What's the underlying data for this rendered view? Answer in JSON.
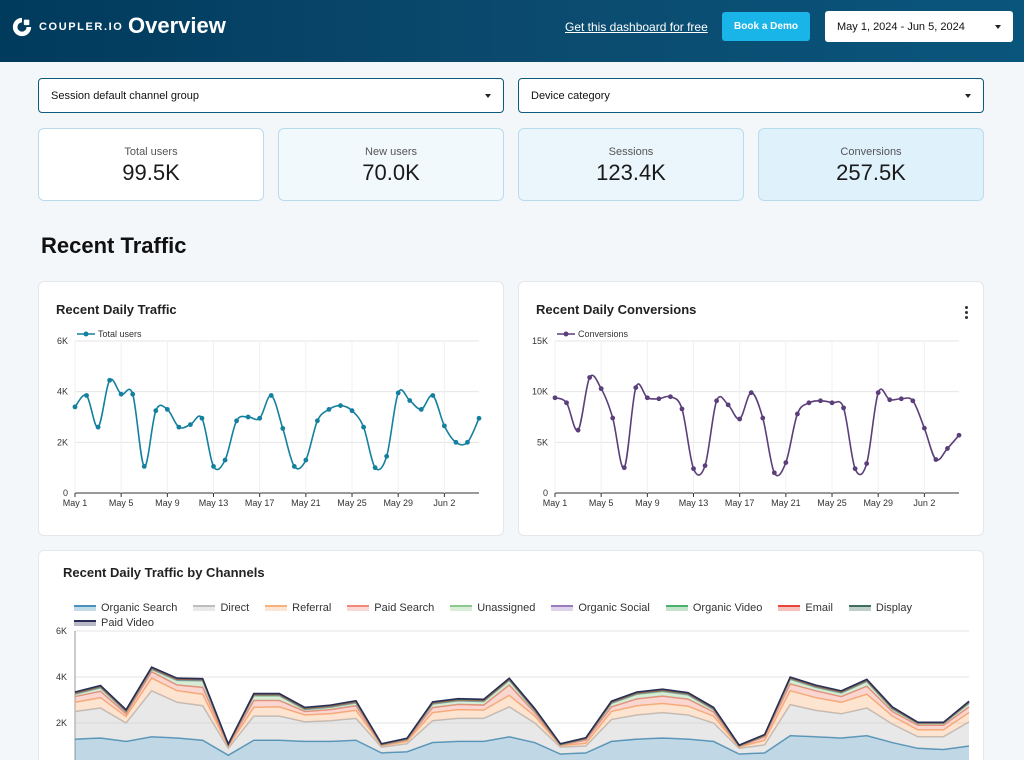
{
  "header": {
    "logo_text": "COUPLER.IO",
    "title": "Overview",
    "promo_link": "Get this dashboard for free",
    "demo_button": "Book a Demo",
    "date_range": "May 1, 2024 - Jun 5, 2024"
  },
  "filters": {
    "channel": "Session default channel group",
    "device": "Device category"
  },
  "kpis": [
    {
      "label": "Total users",
      "value": "99.5K"
    },
    {
      "label": "New users",
      "value": "70.0K"
    },
    {
      "label": "Sessions",
      "value": "123.4K"
    },
    {
      "label": "Conversions",
      "value": "257.5K"
    }
  ],
  "section_title": "Recent Traffic",
  "colors": {
    "traffic_line": "#14809f",
    "conversions_line": "#5b3f7a",
    "header_bg": "#003a5c",
    "accent": "#19b4e8"
  },
  "chart_data": [
    {
      "type": "line",
      "title": "Recent Daily Traffic",
      "x_ticks": [
        "May 1",
        "May 5",
        "May 9",
        "May 13",
        "May 17",
        "May 21",
        "May 25",
        "May 29",
        "Jun 2"
      ],
      "y_ticks": [
        "0",
        "2K",
        "4K",
        "6K"
      ],
      "ylim": [
        0,
        6000
      ],
      "legend_position": "top-left",
      "grid": true,
      "series": [
        {
          "name": "Total users",
          "color": "#14809f",
          "values": [
            3400,
            3850,
            2600,
            4450,
            3900,
            3900,
            1050,
            3250,
            3300,
            2600,
            2700,
            2950,
            1050,
            1300,
            2850,
            3000,
            2950,
            3850,
            2550,
            1050,
            1300,
            2850,
            3300,
            3450,
            3250,
            2600,
            1000,
            1450,
            3950,
            3650,
            3300,
            3850,
            2650,
            2000,
            2000,
            2950
          ]
        }
      ]
    },
    {
      "type": "line",
      "title": "Recent Daily Conversions",
      "x_ticks": [
        "May 1",
        "May 5",
        "May 9",
        "May 13",
        "May 17",
        "May 21",
        "May 25",
        "May 29",
        "Jun 2"
      ],
      "y_ticks": [
        "0",
        "5K",
        "10K",
        "15K"
      ],
      "ylim": [
        0,
        15000
      ],
      "legend_position": "top-left",
      "grid": true,
      "series": [
        {
          "name": "Conversions",
          "color": "#5b3f7a",
          "values": [
            9400,
            8900,
            6200,
            11400,
            10300,
            7400,
            2500,
            10400,
            9400,
            9300,
            9500,
            8300,
            2400,
            2700,
            9100,
            8700,
            7300,
            9900,
            7400,
            2000,
            3000,
            7800,
            8900,
            9100,
            8900,
            8400,
            2400,
            2900,
            9900,
            9200,
            9300,
            9100,
            6400,
            3300,
            4400,
            5700
          ]
        }
      ]
    },
    {
      "type": "area",
      "title": "Recent Daily Traffic by Channels",
      "stacked": true,
      "y_ticks": [
        "6K",
        "4K",
        "2K"
      ],
      "ylim": [
        0,
        6000
      ],
      "legend_position": "top",
      "series": [
        {
          "name": "Organic Search",
          "color": "#4a90b8",
          "values": [
            1300,
            1350,
            1200,
            1400,
            1350,
            1250,
            600,
            1250,
            1250,
            1200,
            1200,
            1250,
            700,
            750,
            1150,
            1200,
            1200,
            1400,
            1150,
            650,
            700,
            1200,
            1300,
            1350,
            1300,
            1200,
            650,
            700,
            1450,
            1400,
            1350,
            1450,
            1150,
            900,
            850,
            1000
          ]
        },
        {
          "name": "Direct",
          "color": "#bdbdbd",
          "values": [
            1200,
            1300,
            800,
            2000,
            1550,
            1500,
            300,
            1050,
            1050,
            850,
            900,
            950,
            250,
            350,
            950,
            1000,
            1000,
            1300,
            850,
            300,
            300,
            950,
            1050,
            1100,
            1050,
            800,
            250,
            350,
            1350,
            1150,
            1050,
            1200,
            800,
            500,
            550,
            1050
          ]
        },
        {
          "name": "Referral",
          "color": "#f7b27a",
          "values": [
            400,
            450,
            280,
            550,
            500,
            500,
            80,
            380,
            400,
            300,
            300,
            350,
            60,
            100,
            350,
            380,
            360,
            500,
            300,
            60,
            120,
            350,
            400,
            400,
            380,
            300,
            50,
            200,
            600,
            550,
            500,
            600,
            350,
            300,
            300,
            400
          ]
        },
        {
          "name": "Paid Search",
          "color": "#f0897a",
          "values": [
            250,
            280,
            120,
            280,
            250,
            300,
            40,
            300,
            280,
            150,
            180,
            200,
            30,
            60,
            220,
            230,
            220,
            450,
            150,
            30,
            130,
            200,
            300,
            320,
            310,
            180,
            30,
            150,
            300,
            300,
            250,
            350,
            200,
            200,
            200,
            250
          ]
        },
        {
          "name": "Unassigned",
          "color": "#8cc98c",
          "values": [
            100,
            150,
            80,
            100,
            200,
            280,
            20,
            200,
            200,
            80,
            100,
            120,
            10,
            30,
            150,
            150,
            150,
            200,
            80,
            10,
            60,
            150,
            200,
            200,
            180,
            100,
            10,
            50,
            200,
            150,
            150,
            200,
            100,
            80,
            80,
            150
          ]
        },
        {
          "name": "Organic Social",
          "color": "#9c7cc0",
          "values": [
            20,
            20,
            20,
            20,
            20,
            20,
            10,
            20,
            20,
            20,
            20,
            20,
            10,
            10,
            20,
            20,
            20,
            20,
            20,
            10,
            10,
            20,
            20,
            20,
            20,
            20,
            10,
            10,
            20,
            20,
            20,
            20,
            20,
            10,
            10,
            20
          ]
        },
        {
          "name": "Organic Video",
          "color": "#4caf6a",
          "values": [
            20,
            20,
            20,
            20,
            20,
            20,
            10,
            20,
            20,
            20,
            20,
            20,
            10,
            10,
            20,
            20,
            20,
            20,
            20,
            10,
            10,
            20,
            20,
            20,
            20,
            20,
            10,
            10,
            20,
            20,
            20,
            20,
            20,
            10,
            10,
            20
          ]
        },
        {
          "name": "Email",
          "color": "#e8453c",
          "values": [
            20,
            20,
            20,
            20,
            20,
            20,
            10,
            20,
            20,
            20,
            20,
            20,
            10,
            10,
            20,
            20,
            20,
            20,
            20,
            10,
            10,
            20,
            20,
            20,
            20,
            20,
            10,
            10,
            20,
            20,
            20,
            20,
            20,
            10,
            10,
            20
          ]
        },
        {
          "name": "Display",
          "color": "#3f6e5f",
          "values": [
            20,
            20,
            20,
            20,
            20,
            20,
            10,
            20,
            20,
            20,
            20,
            20,
            10,
            10,
            20,
            20,
            20,
            20,
            20,
            10,
            10,
            20,
            20,
            20,
            20,
            20,
            10,
            10,
            20,
            20,
            20,
            20,
            20,
            10,
            10,
            20
          ]
        },
        {
          "name": "Paid Video",
          "color": "#2a2e55",
          "values": [
            20,
            20,
            20,
            20,
            20,
            20,
            10,
            20,
            20,
            20,
            20,
            20,
            10,
            10,
            20,
            20,
            20,
            20,
            20,
            10,
            10,
            20,
            20,
            20,
            20,
            20,
            10,
            10,
            20,
            20,
            20,
            20,
            20,
            10,
            10,
            20
          ]
        }
      ]
    }
  ]
}
